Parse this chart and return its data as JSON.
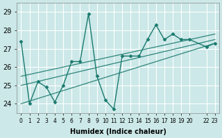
{
  "xlabel": "Humidex (Indice chaleur)",
  "ylabel": "",
  "background_color": "#cce8e8",
  "grid_color": "#ffffff",
  "line_color": "#1a7a6e",
  "xlim": [
    -0.5,
    23.5
  ],
  "ylim": [
    23.5,
    29.5
  ],
  "yticks": [
    24,
    25,
    26,
    27,
    28,
    29
  ],
  "xtick_positions": [
    0,
    1,
    2,
    3,
    4,
    5,
    6,
    7,
    8,
    9,
    10,
    11,
    12,
    13,
    14,
    15,
    16,
    17,
    18,
    19,
    20,
    22,
    23
  ],
  "xtick_labels": [
    "0",
    "1",
    "2",
    "3",
    "4",
    "5",
    "6",
    "7",
    "8",
    "9",
    "10",
    "11",
    "12",
    "13",
    "14",
    "15",
    "16",
    "17",
    "18",
    "19",
    "20",
    "22",
    "23"
  ],
  "main_series_x": [
    0,
    1,
    2,
    3,
    4,
    5,
    6,
    7,
    8,
    9,
    10,
    11,
    12,
    13,
    14,
    15,
    16,
    17,
    18,
    19,
    20,
    22,
    23
  ],
  "main_series_y": [
    27.4,
    24.0,
    25.2,
    24.9,
    24.1,
    25.0,
    26.3,
    26.3,
    28.9,
    25.5,
    24.2,
    23.7,
    26.6,
    26.6,
    26.6,
    27.5,
    28.3,
    27.5,
    27.8,
    27.5,
    27.5,
    27.1,
    27.3
  ],
  "line1_x": [
    0,
    23
  ],
  "line1_y": [
    24.0,
    27.3
  ],
  "line2_x": [
    0,
    23
  ],
  "line2_y": [
    25.0,
    27.5
  ],
  "line3_x": [
    0,
    23
  ],
  "line3_y": [
    25.5,
    27.8
  ]
}
